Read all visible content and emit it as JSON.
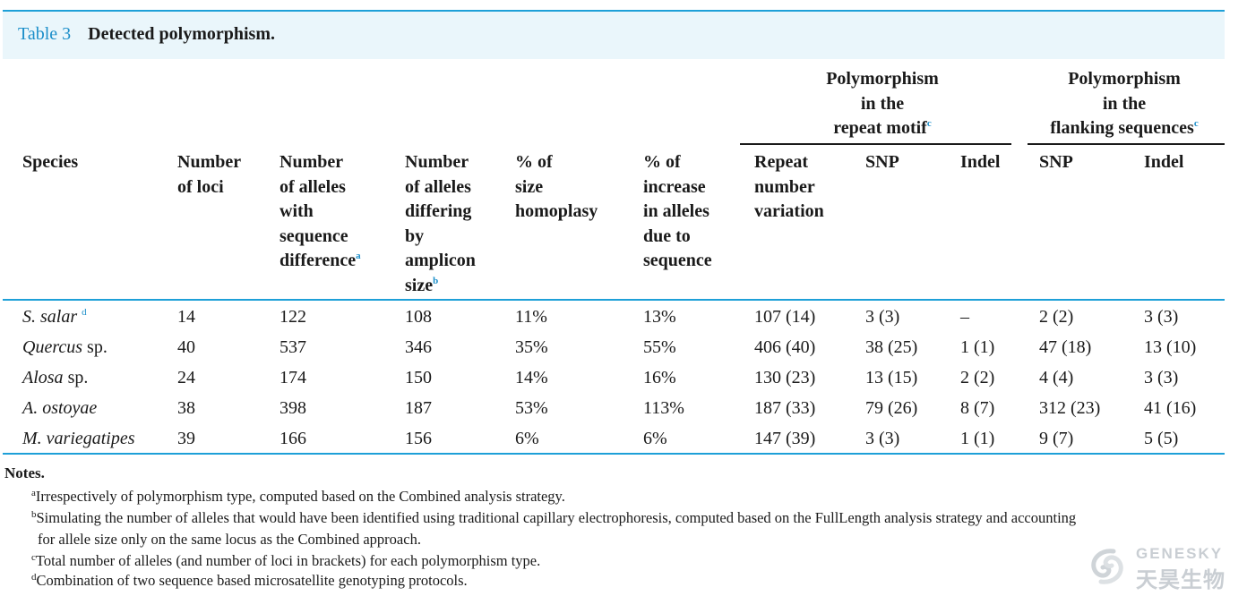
{
  "caption": {
    "label": "Table 3",
    "title": "Detected polymorphism."
  },
  "header": {
    "group_repeat": {
      "line1": "Polymorphism",
      "line2": "in the",
      "line3": "repeat motif",
      "sup": "c"
    },
    "group_flank": {
      "line1": "Polymorphism",
      "line2": "in the",
      "line3": "flanking sequences",
      "sup": "c"
    },
    "species": "Species",
    "num_loci": [
      "Number",
      "of loci"
    ],
    "alleles_seq": [
      "Number",
      "of alleles",
      "with",
      "sequence",
      "difference"
    ],
    "alleles_seq_sup": "a",
    "alleles_size": [
      "Number",
      "of alleles",
      "differing",
      "by",
      "amplicon",
      "size"
    ],
    "alleles_size_sup": "b",
    "homoplasy": [
      "% of",
      "size",
      "homoplasy"
    ],
    "increase": [
      "% of",
      "increase",
      "in alleles",
      "due to",
      "sequence"
    ],
    "repeat_num": [
      "Repeat",
      "number",
      "variation"
    ],
    "snp_repeat": "SNP",
    "indel_repeat": "Indel",
    "snp_flank": "SNP",
    "indel_flank": "Indel"
  },
  "rows": [
    {
      "species": "S. salar",
      "species_sup": "d",
      "loci": "14",
      "seq": "122",
      "size": "108",
      "homoplasy": "11%",
      "increase": "13%",
      "repeat": "107 (14)",
      "snp_r": "3 (3)",
      "indel_r": "–",
      "snp_f": "2 (2)",
      "indel_f": "3 (3)"
    },
    {
      "species": "Quercus",
      "species_suffix": " sp.",
      "loci": "40",
      "seq": "537",
      "size": "346",
      "homoplasy": "35%",
      "increase": "55%",
      "repeat": "406 (40)",
      "snp_r": "38 (25)",
      "indel_r": "1 (1)",
      "snp_f": "47 (18)",
      "indel_f": "13 (10)"
    },
    {
      "species": "Alosa",
      "species_suffix": " sp.",
      "loci": "24",
      "seq": "174",
      "size": "150",
      "homoplasy": "14%",
      "increase": "16%",
      "repeat": "130 (23)",
      "snp_r": "13 (15)",
      "indel_r": "2 (2)",
      "snp_f": "4 (4)",
      "indel_f": "3 (3)"
    },
    {
      "species": "A. ostoyae",
      "loci": "38",
      "seq": "398",
      "size": "187",
      "homoplasy": "53%",
      "increase": "113%",
      "repeat": "187 (33)",
      "snp_r": "79 (26)",
      "indel_r": "8 (7)",
      "snp_f": "312 (23)",
      "indel_f": "41 (16)"
    },
    {
      "species": "M. variegatipes",
      "loci": "39",
      "seq": "166",
      "size": "156",
      "homoplasy": "6%",
      "increase": "6%",
      "repeat": "147 (39)",
      "snp_r": "3 (3)",
      "indel_r": "1 (1)",
      "snp_f": "9 (7)",
      "indel_f": "5 (5)"
    }
  ],
  "notes": {
    "title": "Notes.",
    "a": {
      "sup": "a",
      "text": "Irrespectively of polymorphism type, computed based on the Combined analysis strategy."
    },
    "b": {
      "sup": "b",
      "text": "Simulating the number of alleles that would have been identified using traditional capillary electrophoresis, computed based on the FullLength analysis strategy and accounting",
      "text2": "for allele size only on the same locus as the Combined approach."
    },
    "c": {
      "sup": "c",
      "text": "Total number of alleles (and number of loci in brackets) for each polymorphism type."
    },
    "d": {
      "sup": "d",
      "text": "Combination of two sequence based microsatellite genotyping protocols."
    }
  },
  "watermark": {
    "en": "GENESKY",
    "cn": "天昊生物"
  },
  "colors": {
    "accent": "#1ea0d8",
    "caption_bg": "#eaf6fb",
    "label": "#1b8ec9"
  }
}
